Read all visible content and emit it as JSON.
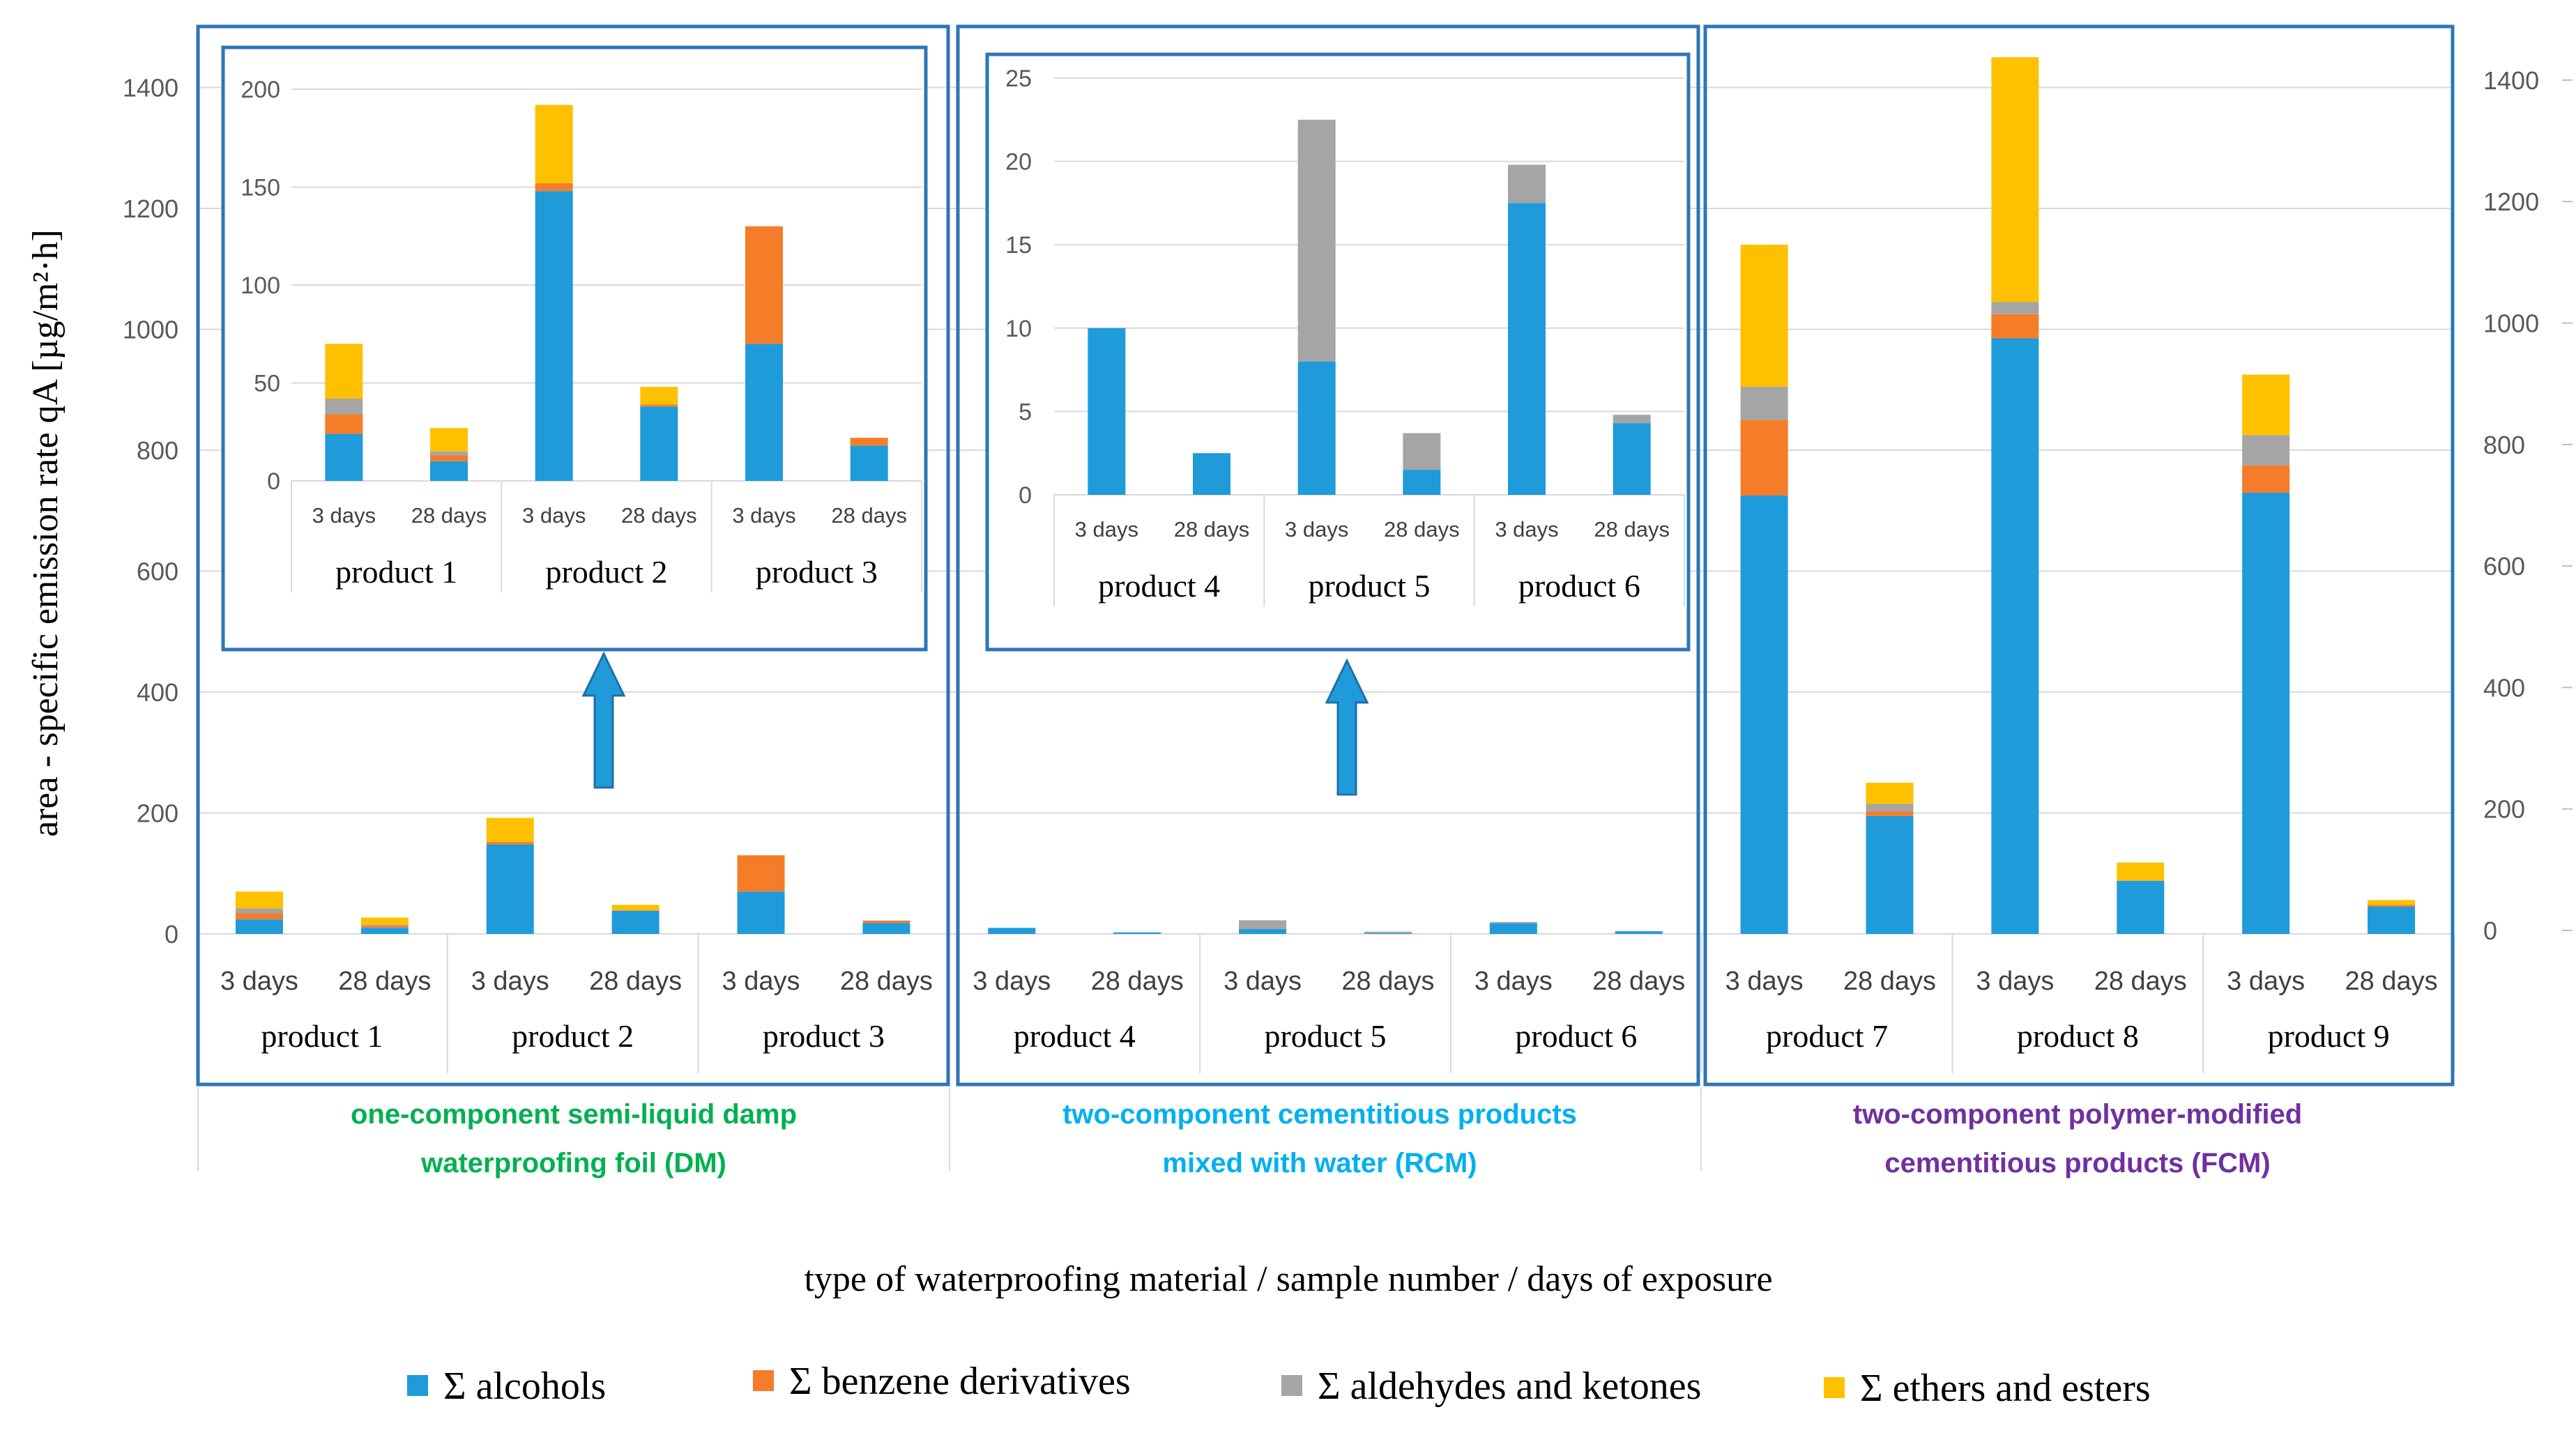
{
  "chart_data": {
    "type": "bar",
    "stacked": true,
    "ylabel": "area - specific emission rate qA [µg/m²·h]",
    "xlabel": "type of waterproofing material / sample number / days of exposure",
    "ylim": [
      0,
      1400
    ],
    "yticks": [
      0,
      200,
      400,
      600,
      800,
      1000,
      1200,
      1400
    ],
    "grid": true,
    "legend_position": "bottom",
    "categories": [
      "3 days",
      "28 days",
      "3 days",
      "28 days",
      "3 days",
      "28 days",
      "3 days",
      "28 days",
      "3 days",
      "28 days",
      "3 days",
      "28 days",
      "3 days",
      "28 days",
      "3 days",
      "28 days",
      "3 days",
      "28 days"
    ],
    "products": [
      "product 1",
      "product 2",
      "product 3",
      "product 4",
      "product 5",
      "product 6",
      "product 7",
      "product 8",
      "product 9"
    ],
    "groups": [
      {
        "label_main": "one-component semi-liquid damp",
        "label_sub": "waterproofing foil",
        "code": "(DM)",
        "color": "#00B050"
      },
      {
        "label_main": "two-component cementitious products",
        "label_sub": "mixed with water",
        "code": "(RCM)",
        "color": "#00B0F0"
      },
      {
        "label_main": "two-component polymer-modified",
        "label_sub": "cementitious products",
        "code": "(FCM)",
        "color": "#7030A0"
      }
    ],
    "series": [
      {
        "name": "Σ alcohols",
        "color": "#1F9BDA",
        "values": [
          24,
          10,
          148,
          38,
          70,
          18,
          10,
          2.5,
          8,
          1.5,
          17.5,
          4.3,
          725,
          195,
          985,
          88,
          730,
          45
        ]
      },
      {
        "name": "Σ benzene derivatives",
        "color": "#F57C28",
        "values": [
          10,
          3,
          4,
          1,
          60,
          4,
          0,
          0,
          0,
          0,
          0,
          0,
          125,
          8,
          40,
          0,
          45,
          3
        ]
      },
      {
        "name": "Σ aldehydes and ketones",
        "color": "#A5A5A5",
        "values": [
          8,
          2,
          0,
          0,
          0,
          0,
          0,
          0,
          14.5,
          2.2,
          2.3,
          0.5,
          55,
          12,
          20,
          0,
          50,
          0
        ]
      },
      {
        "name": "Σ ethers and esters",
        "color": "#FFC000",
        "values": [
          28,
          12,
          40,
          9,
          0,
          0,
          0,
          0,
          0,
          0,
          0,
          0,
          235,
          35,
          405,
          30,
          100,
          8
        ]
      }
    ],
    "insets": [
      {
        "products": [
          "product 1",
          "product 2",
          "product 3"
        ],
        "ylim": [
          0,
          200
        ],
        "yticks": [
          0,
          50,
          100,
          150,
          200
        ],
        "categories": [
          "3 days",
          "28 days",
          "3 days",
          "28 days",
          "3 days",
          "28 days"
        ],
        "bar_range": [
          0,
          6
        ]
      },
      {
        "products": [
          "product 4",
          "product 5",
          "product 6"
        ],
        "ylim": [
          0,
          25
        ],
        "yticks": [
          0,
          5,
          10,
          15,
          20,
          25
        ],
        "categories": [
          "3 days",
          "28 days",
          "3 days",
          "28 days",
          "3 days",
          "28 days"
        ],
        "bar_range": [
          6,
          12
        ]
      }
    ]
  }
}
